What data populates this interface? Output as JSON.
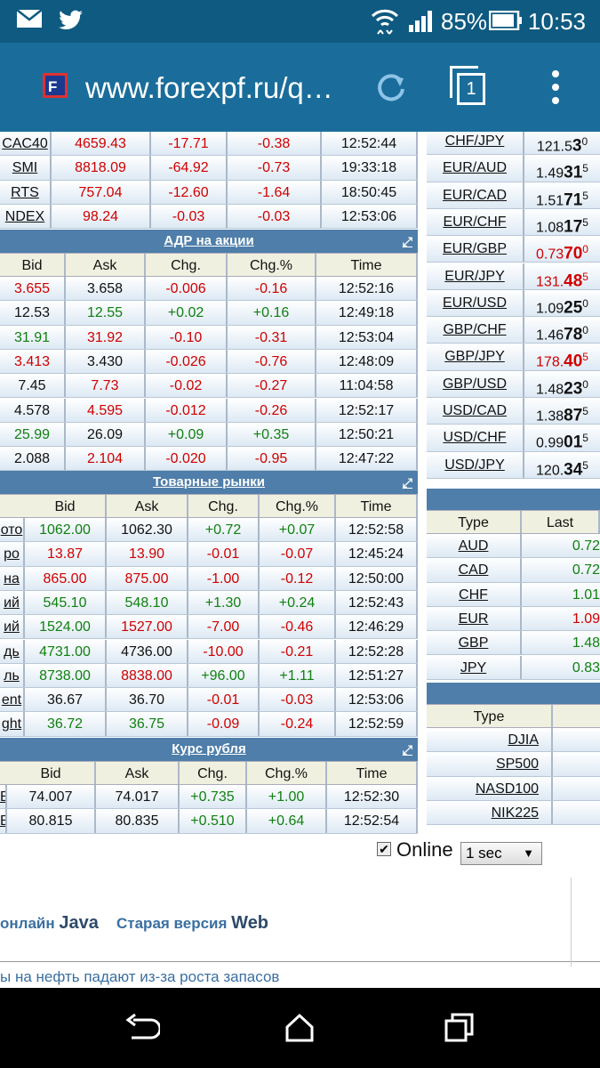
{
  "status_bar": {
    "battery": "85%",
    "time": "10:53"
  },
  "browser": {
    "url": "www.forexpf.ru/q…",
    "tab_count": "1"
  },
  "indices": {
    "rows": [
      [
        "CAC40",
        "4659.43",
        "-17.71",
        "-0.38",
        "12:52:44"
      ],
      [
        "SMI",
        "8818.09",
        "-64.92",
        "-0.73",
        "19:33:18"
      ],
      [
        "RTS",
        "757.04",
        "-12.60",
        "-1.64",
        "18:50:45"
      ],
      [
        "NDEX",
        "98.24",
        "-0.03",
        "-0.03",
        "12:53:06"
      ]
    ]
  },
  "adr": {
    "title": "АДР на акции",
    "headers": [
      "Bid",
      "Ask",
      "Chg.",
      "Chg.%",
      "Time"
    ],
    "rows": [
      [
        "3.655",
        "3.658",
        "-0.006",
        "-0.16",
        "12:52:16"
      ],
      [
        "12.53",
        "12.55",
        "+0.02",
        "+0.16",
        "12:49:18"
      ],
      [
        "31.91",
        "31.92",
        "-0.10",
        "-0.31",
        "12:53:04"
      ],
      [
        "3.413",
        "3.430",
        "-0.026",
        "-0.76",
        "12:48:09"
      ],
      [
        "7.45",
        "7.73",
        "-0.02",
        "-0.27",
        "11:04:58"
      ],
      [
        "4.578",
        "4.595",
        "-0.012",
        "-0.26",
        "12:52:17"
      ],
      [
        "25.99",
        "26.09",
        "+0.09",
        "+0.35",
        "12:50:21"
      ],
      [
        "2.088",
        "2.104",
        "-0.020",
        "-0.95",
        "12:47:22"
      ]
    ]
  },
  "commodities": {
    "title": "Товарные рынки",
    "headers": [
      "Bid",
      "Ask",
      "Chg.",
      "Chg.%",
      "Time"
    ],
    "rows": [
      [
        "ото",
        "1062.00",
        "1062.30",
        "+0.72",
        "+0.07",
        "12:52:58"
      ],
      [
        "ро",
        "13.87",
        "13.90",
        "-0.01",
        "-0.07",
        "12:45:24"
      ],
      [
        "на",
        "865.00",
        "875.00",
        "-1.00",
        "-0.12",
        "12:50:00"
      ],
      [
        "ий",
        "545.10",
        "548.10",
        "+1.30",
        "+0.24",
        "12:52:43"
      ],
      [
        "ий",
        "1524.00",
        "1527.00",
        "-7.00",
        "-0.46",
        "12:46:29"
      ],
      [
        "дь",
        "4731.00",
        "4736.00",
        "-10.00",
        "-0.21",
        "12:52:28"
      ],
      [
        "ль",
        "8738.00",
        "8838.00",
        "+96.00",
        "+1.11",
        "12:51:27"
      ],
      [
        "ent",
        "36.67",
        "36.70",
        "-0.01",
        "-0.03",
        "12:53:06"
      ],
      [
        "ght",
        "36.72",
        "36.75",
        "-0.09",
        "-0.24",
        "12:52:59"
      ]
    ]
  },
  "ruble": {
    "title": "Курс рубля",
    "headers": [
      "Bid",
      "Ask",
      "Chg.",
      "Chg.%",
      "Time"
    ],
    "rows": [
      [
        "B",
        "74.007",
        "74.017",
        "+0.735",
        "+1.00",
        "12:52:30"
      ],
      [
        "B",
        "80.815",
        "80.835",
        "+0.510",
        "+0.64",
        "12:52:54"
      ]
    ]
  },
  "fx": {
    "rows": [
      [
        "CHF/JPY",
        "121.5",
        "3",
        "0"
      ],
      [
        "EUR/AUD",
        "1.49",
        "31",
        "5"
      ],
      [
        "EUR/CAD",
        "1.51",
        "71",
        "5"
      ],
      [
        "EUR/CHF",
        "1.08",
        "17",
        "5"
      ],
      [
        "EUR/GBP",
        "0.73",
        "70",
        "0"
      ],
      [
        "EUR/JPY",
        "131.",
        "48",
        "5"
      ],
      [
        "EUR/USD",
        "1.09",
        "25",
        "0"
      ],
      [
        "GBP/CHF",
        "1.46",
        "78",
        "0"
      ],
      [
        "GBP/JPY",
        "178.",
        "40",
        "5"
      ],
      [
        "GBP/USD",
        "1.48",
        "23",
        "0"
      ],
      [
        "USD/CAD",
        "1.38",
        "87",
        "5"
      ],
      [
        "USD/CHF",
        "0.99",
        "01",
        "5"
      ],
      [
        "USD/JPY",
        "120.",
        "34",
        "5"
      ]
    ]
  },
  "curr": {
    "headers": [
      "Type",
      "Last"
    ],
    "rows": [
      [
        "AUD",
        "0.72"
      ],
      [
        "CAD",
        "0.72"
      ],
      [
        "CHF",
        "1.01"
      ],
      [
        "EUR",
        "1.09"
      ],
      [
        "GBP",
        "1.48"
      ],
      [
        "JPY",
        "0.83"
      ]
    ]
  },
  "idx2": {
    "headers": [
      "Type"
    ],
    "rows": [
      "DJIA",
      "SP500",
      "NASD100",
      "NIK225"
    ]
  },
  "online": {
    "label": "Online",
    "select": "1 sec"
  },
  "links": {
    "java_prefix": "онлайн",
    "java": "Java",
    "web_prefix": "Старая версия",
    "web": "Web"
  },
  "news": "ы на нефть падают из-за роста запасов"
}
